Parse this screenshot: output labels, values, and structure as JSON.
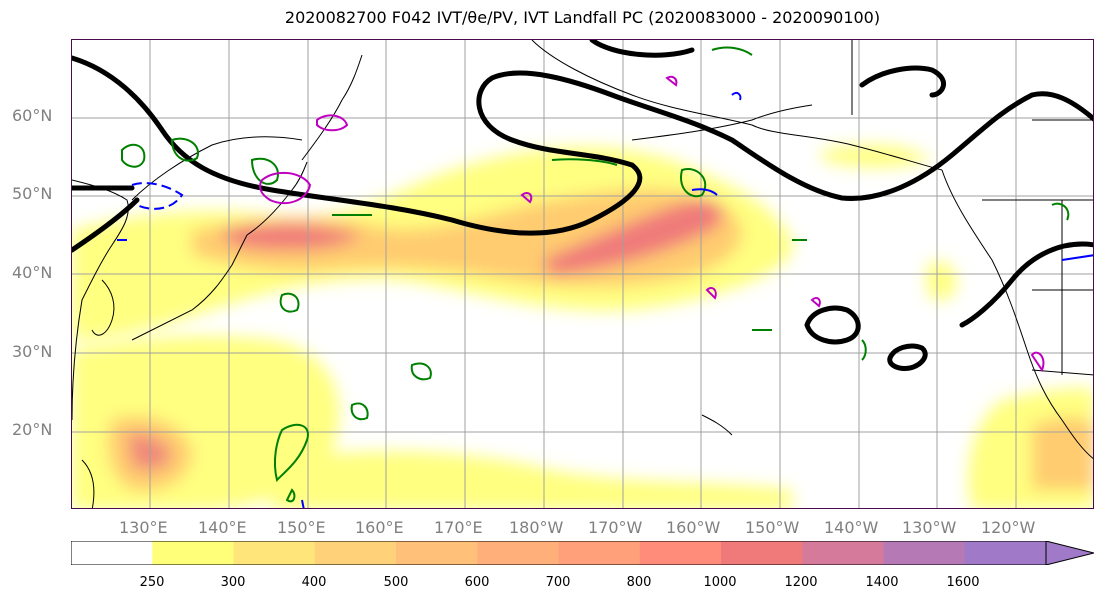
{
  "title": "2020082700 F042 IVT/θe/PV, IVT Landfall PC (2020083000 - 2020090100)",
  "lat_labels": [
    "60°N",
    "50°N",
    "40°N",
    "30°N",
    "20°N"
  ],
  "lon_labels": [
    "130°E",
    "140°E",
    "150°E",
    "160°E",
    "170°E",
    "180°W",
    "170°W",
    "160°W",
    "150°W",
    "140°W",
    "130°W",
    "120°W"
  ],
  "colorbar": {
    "ticks": [
      "250",
      "300",
      "400",
      "500",
      "600",
      "700",
      "800",
      "1000",
      "1200",
      "1400",
      "1600"
    ],
    "colors": [
      "#ffffff",
      "#ffff7a",
      "#ffe57a",
      "#ffd27a",
      "#ffc07a",
      "#ffb07a",
      "#ffa07a",
      "#ff8c7a",
      "#f07a7a",
      "#d57a9a",
      "#b57ab5",
      "#a07ac8"
    ]
  },
  "colors": {
    "ivt_low": "#ffff80",
    "ivt_mid": "#ffcc80",
    "ivt_high": "#f08080",
    "pv_contour": "#008000",
    "theta_contour": "#0000ff",
    "magenta_contour": "#c000c0",
    "landfall_contour": "#000000"
  }
}
